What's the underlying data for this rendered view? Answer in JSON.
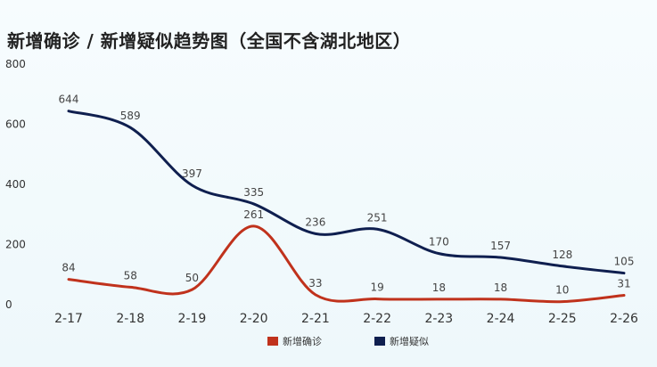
{
  "chart_data": {
    "type": "line",
    "title": "新增确诊 / 新增疑似趋势图（全国不含湖北地区）",
    "categories": [
      "2-17",
      "2-18",
      "2-19",
      "2-20",
      "2-21",
      "2-22",
      "2-23",
      "2-24",
      "2-25",
      "2-26"
    ],
    "series": [
      {
        "name": "新增确诊",
        "values": [
          84,
          58,
          50,
          261,
          33,
          19,
          18,
          18,
          10,
          31
        ],
        "color": "#c0321c"
      },
      {
        "name": "新增疑似",
        "values": [
          644,
          589,
          397,
          335,
          236,
          251,
          170,
          157,
          128,
          105
        ],
        "color": "#0f1f4f"
      }
    ],
    "ylim": [
      0,
      800
    ],
    "yticks": [
      0,
      200,
      400,
      600,
      800
    ],
    "grid": false,
    "smooth": true,
    "legend": "bottom-center"
  }
}
